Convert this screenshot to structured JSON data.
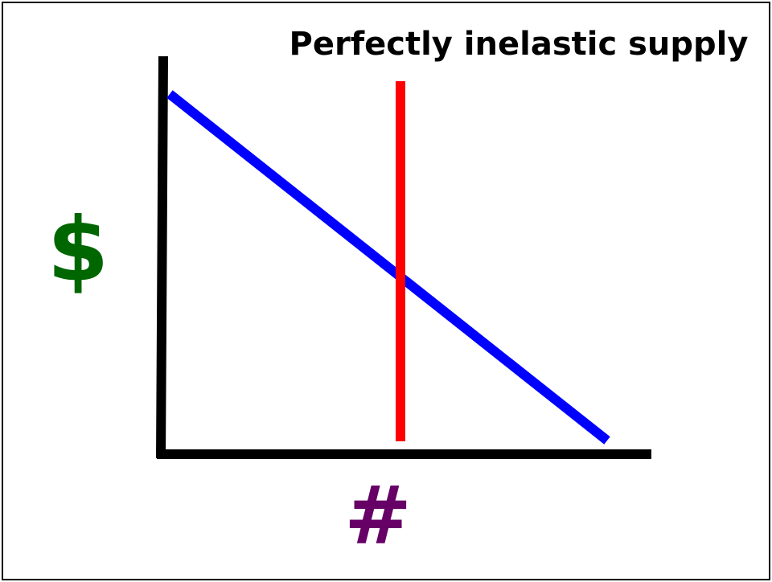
{
  "title": "Perfectly inelastic supply",
  "y_label": "$",
  "x_label": "#"
}
